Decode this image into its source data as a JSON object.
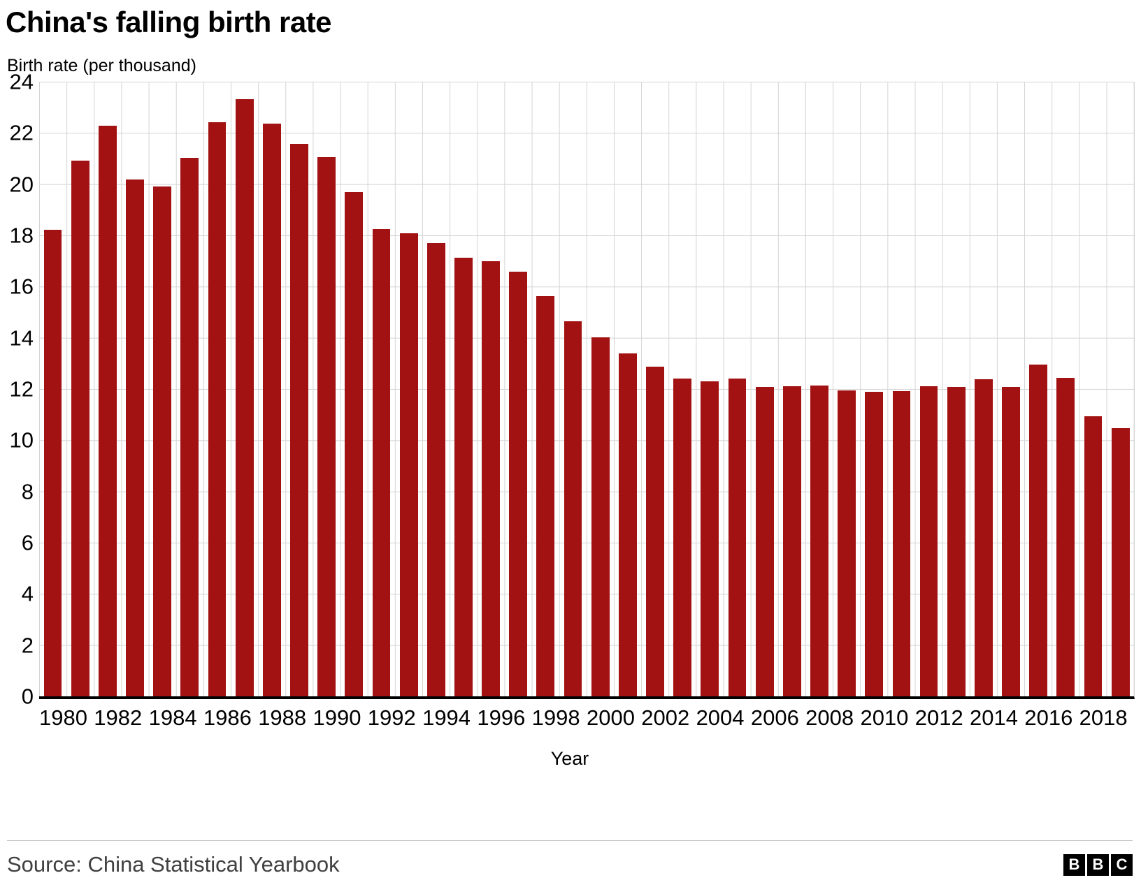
{
  "title": "China's falling birth rate",
  "y_axis_label": "Birth rate (per thousand)",
  "x_axis_label": "Year",
  "source": "Source: China Statistical Yearbook",
  "logo_letters": [
    "B",
    "B",
    "C"
  ],
  "colors": {
    "bar": "#a31212",
    "grid": "#d4d4d4",
    "axis": "#000000",
    "source_text": "#404040"
  },
  "chart_data": {
    "type": "bar",
    "title": "China's falling birth rate",
    "xlabel": "Year",
    "ylabel": "Birth rate (per thousand)",
    "ylim": [
      0,
      24
    ],
    "ytick_step": 2,
    "xtick_label_step": 2,
    "grid": true,
    "legend": "none",
    "categories": [
      1980,
      1981,
      1982,
      1983,
      1984,
      1985,
      1986,
      1987,
      1988,
      1989,
      1990,
      1991,
      1992,
      1993,
      1994,
      1995,
      1996,
      1997,
      1998,
      1999,
      2000,
      2001,
      2002,
      2003,
      2004,
      2005,
      2006,
      2007,
      2008,
      2009,
      2010,
      2011,
      2012,
      2013,
      2014,
      2015,
      2016,
      2017,
      2018,
      2019
    ],
    "values": [
      18.21,
      20.91,
      22.28,
      20.19,
      19.9,
      21.04,
      22.43,
      23.33,
      22.37,
      21.58,
      21.06,
      19.68,
      18.24,
      18.09,
      17.7,
      17.12,
      16.98,
      16.57,
      15.64,
      14.64,
      14.03,
      13.38,
      12.86,
      12.41,
      12.29,
      12.4,
      12.09,
      12.1,
      12.14,
      11.95,
      11.9,
      11.93,
      12.1,
      12.08,
      12.37,
      12.07,
      12.95,
      12.43,
      10.94,
      10.48
    ]
  }
}
